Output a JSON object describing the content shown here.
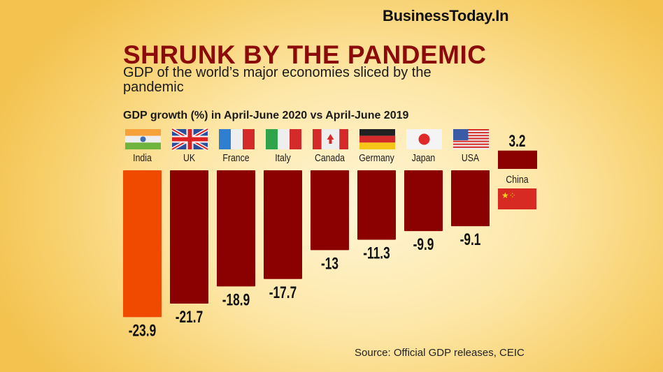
{
  "brand": "BusinessToday.In",
  "title": "SHRUNK BY THE PANDEMIC",
  "subtitle": "GDP of the world’s major economies sliced by the pandemic",
  "source": "Source: Official GDP releases, CEIC",
  "chart_data": {
    "type": "bar",
    "title": "SHRUNK BY THE PANDEMIC",
    "ylabel": "GDP growth (%) in April-June 2020 vs April-June 2019",
    "categories": [
      "India",
      "UK",
      "France",
      "Italy",
      "Canada",
      "Germany",
      "Japan",
      "USA",
      "China"
    ],
    "values": [
      -23.9,
      -21.7,
      -18.9,
      -17.7,
      -13,
      -11.3,
      -9.9,
      -9.1,
      3.2
    ],
    "value_labels": [
      "-23.9",
      "-21.7",
      "-18.9",
      "-17.7",
      "-13",
      "-11.3",
      "-9.9",
      "-9.1",
      "3.2"
    ],
    "flag_icons": [
      "india-flag",
      "uk-flag",
      "france-flag",
      "italy-flag",
      "canada-flag",
      "germany-flag",
      "japan-flag",
      "usa-flag",
      "china-flag"
    ],
    "colors": {
      "highlight": "#f04a00",
      "bar": "#8b0000"
    },
    "highlight_category": "India",
    "grid": false
  }
}
